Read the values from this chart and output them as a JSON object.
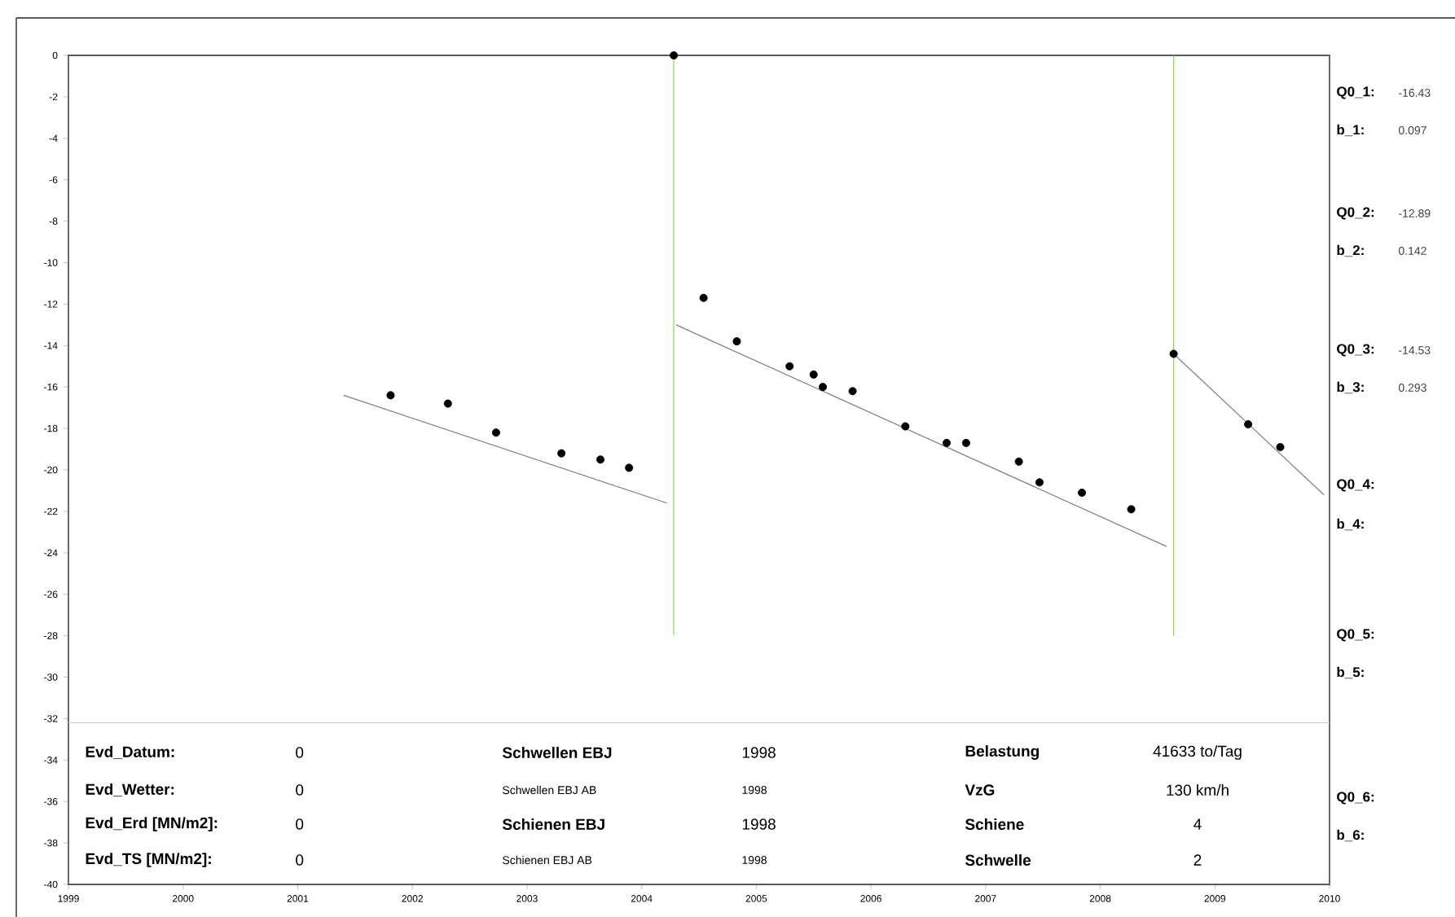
{
  "chart_data": {
    "type": "scatter",
    "xlim": [
      1999,
      2010
    ],
    "ylim": [
      -40,
      0
    ],
    "xticks": [
      1999,
      2000,
      2001,
      2002,
      2003,
      2004,
      2005,
      2006,
      2007,
      2008,
      2009,
      2010
    ],
    "yticks": [
      0,
      -2,
      -4,
      -6,
      -8,
      -10,
      -12,
      -14,
      -16,
      -18,
      -20,
      -22,
      -24,
      -26,
      -28,
      -30,
      -32,
      -34,
      -36,
      -38,
      -40
    ],
    "line_style": "solid",
    "series": [
      {
        "marker": "circle",
        "color": "#000000",
        "x": [
          2001.81,
          2002.31,
          2002.73,
          2003.3,
          2003.64,
          2003.89
        ],
        "values": [
          -16.4,
          -16.8,
          -18.2,
          -19.2,
          -19.5,
          -19.9
        ]
      },
      {
        "type": "line",
        "marker": "none",
        "color": "#808080",
        "x": [
          2001.4,
          2004.22
        ],
        "values": [
          -16.4,
          -21.6
        ]
      },
      {
        "marker": "circle",
        "color": "#000000",
        "x": [
          2004.28,
          2004.54,
          2004.83,
          2005.29,
          2005.5,
          2005.58,
          2005.84,
          2006.3,
          2006.66,
          2006.83,
          2007.29,
          2007.47,
          2007.84,
          2008.27
        ],
        "values": [
          0,
          -11.7,
          -13.8,
          -15.0,
          -15.4,
          -16.0,
          -16.2,
          -17.9,
          -18.7,
          -18.7,
          -19.6,
          -20.6,
          -21.1,
          -21.9
        ]
      },
      {
        "type": "line",
        "marker": "none",
        "color": "#808080",
        "x": [
          2004.3,
          2008.58
        ],
        "values": [
          -13.0,
          -23.7
        ]
      },
      {
        "marker": "circle",
        "color": "#000000",
        "x": [
          2008.64,
          2009.29,
          2009.57
        ],
        "values": [
          -14.4,
          -17.8,
          -18.9
        ]
      },
      {
        "type": "line",
        "marker": "none",
        "color": "#808080",
        "x": [
          2008.64,
          2009.95
        ],
        "values": [
          -14.4,
          -21.2
        ]
      },
      {
        "type": "line",
        "marker": "none",
        "color": "#80e040",
        "x": [
          2004.28,
          2004.28
        ],
        "values": [
          0,
          -28
        ]
      },
      {
        "type": "line",
        "marker": "none",
        "color": "#80e040",
        "x": [
          2008.64,
          2008.64
        ],
        "values": [
          0,
          -28
        ]
      }
    ],
    "ref_lines": [
      {
        "axis": "y",
        "value": -32.2,
        "color": "#c8c8c8"
      }
    ],
    "annotations": [
      "Evd_Datum:",
      "0",
      "Schwellen EBJ",
      "1998",
      "Belastung",
      "41633 to/Tag",
      "Evd_Wetter:",
      "0",
      "Schwellen EBJ AB",
      "1998",
      "VzG",
      "130 km/h",
      "Evd_Erd [MN/m2]:",
      "0",
      "Schienen EBJ",
      "1998",
      "Schiene",
      "4",
      "Evd_TS [MN/m2]:",
      "0",
      "Schienen EBJ AB",
      "1998",
      "Schwelle",
      "2",
      "Q0_1:",
      "-16.43",
      "b_1:",
      "0.097",
      "Q0_2:",
      "-12.89",
      "b_2:",
      "0.142",
      "Q0_3:",
      "-14.53",
      "b_3:",
      "0.293",
      "Q0_4:",
      "b_4:",
      "Q0_5:",
      "b_5:",
      "Q0_6:",
      "b_6:"
    ]
  }
}
